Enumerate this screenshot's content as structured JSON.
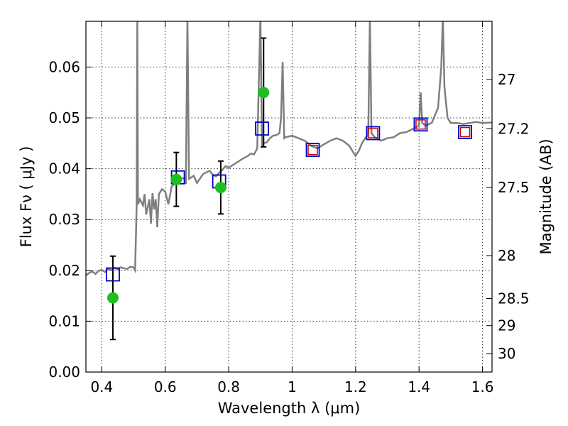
{
  "chart_data": {
    "type": "scatter",
    "title": "",
    "xlabel": "Wavelength  λ (μm)",
    "ylabel": "Flux  Fν  ( μJy )",
    "y2label": "Magnitude (AB)",
    "xlim": [
      0.35,
      1.63
    ],
    "ylim": [
      0.0,
      0.069
    ],
    "grid": true,
    "legend": "none",
    "x_ticks": [
      {
        "value": 0.4,
        "label": "0.4"
      },
      {
        "value": 0.6,
        "label": "0.6"
      },
      {
        "value": 0.8,
        "label": "0.8"
      },
      {
        "value": 1.0,
        "label": "1"
      },
      {
        "value": 1.2,
        "label": "1.2"
      },
      {
        "value": 1.4,
        "label": "1.4"
      },
      {
        "value": 1.6,
        "label": "1.6"
      }
    ],
    "y_ticks": [
      {
        "value": 0.0,
        "label": "0.00"
      },
      {
        "value": 0.01,
        "label": "0.01"
      },
      {
        "value": 0.02,
        "label": "0.02"
      },
      {
        "value": 0.03,
        "label": "0.03"
      },
      {
        "value": 0.04,
        "label": "0.04"
      },
      {
        "value": 0.05,
        "label": "0.05"
      },
      {
        "value": 0.06,
        "label": "0.06"
      }
    ],
    "y2_ticks": [
      {
        "mag": 27.0,
        "label": "27"
      },
      {
        "mag": 27.2,
        "label": "27.2"
      },
      {
        "mag": 27.5,
        "label": "27.5"
      },
      {
        "mag": 28.0,
        "label": "28"
      },
      {
        "mag": 28.5,
        "label": "28.5"
      },
      {
        "mag": 29.0,
        "label": "29"
      },
      {
        "mag": 30.0,
        "label": "30"
      }
    ],
    "colors": {
      "model": "#7f7f7f",
      "observed": "#1fbf1f",
      "errorbar": "#000000",
      "model_band_blue": "#0000cc",
      "model_band_red": "#cc0000"
    },
    "series": [
      {
        "kind": "line",
        "points": [
          [
            0.35,
            0.019
          ],
          [
            0.36,
            0.0195
          ],
          [
            0.37,
            0.0198
          ],
          [
            0.38,
            0.0193
          ],
          [
            0.39,
            0.0199
          ],
          [
            0.4,
            0.0201
          ],
          [
            0.41,
            0.0197
          ],
          [
            0.42,
            0.0203
          ],
          [
            0.43,
            0.02
          ],
          [
            0.44,
            0.0205
          ],
          [
            0.45,
            0.0202
          ],
          [
            0.46,
            0.0206
          ],
          [
            0.47,
            0.0204
          ],
          [
            0.48,
            0.0203
          ],
          [
            0.49,
            0.0207
          ],
          [
            0.5,
            0.0206
          ],
          [
            0.505,
            0.02
          ],
          [
            0.51,
            0.033
          ],
          [
            0.512,
            0.07
          ],
          [
            0.514,
            0.033
          ],
          [
            0.52,
            0.034
          ],
          [
            0.53,
            0.0328
          ],
          [
            0.535,
            0.035
          ],
          [
            0.54,
            0.031
          ],
          [
            0.55,
            0.034
          ],
          [
            0.555,
            0.0292
          ],
          [
            0.56,
            0.0352
          ],
          [
            0.565,
            0.032
          ],
          [
            0.57,
            0.034
          ],
          [
            0.575,
            0.0285
          ],
          [
            0.58,
            0.035
          ],
          [
            0.59,
            0.036
          ],
          [
            0.6,
            0.0355
          ],
          [
            0.61,
            0.033
          ],
          [
            0.62,
            0.0365
          ],
          [
            0.63,
            0.037
          ],
          [
            0.64,
            0.0375
          ],
          [
            0.65,
            0.038
          ],
          [
            0.66,
            0.0382
          ],
          [
            0.665,
            0.037
          ],
          [
            0.67,
            0.07
          ],
          [
            0.675,
            0.038
          ],
          [
            0.69,
            0.0386
          ],
          [
            0.7,
            0.0372
          ],
          [
            0.72,
            0.039
          ],
          [
            0.74,
            0.0396
          ],
          [
            0.75,
            0.0388
          ],
          [
            0.76,
            0.0385
          ],
          [
            0.77,
            0.0392
          ],
          [
            0.78,
            0.0398
          ],
          [
            0.79,
            0.0405
          ],
          [
            0.8,
            0.0402
          ],
          [
            0.82,
            0.041
          ],
          [
            0.84,
            0.0418
          ],
          [
            0.86,
            0.0425
          ],
          [
            0.87,
            0.043
          ],
          [
            0.88,
            0.0428
          ],
          [
            0.89,
            0.044
          ],
          [
            0.9,
            0.07
          ],
          [
            0.905,
            0.0445
          ],
          [
            0.91,
            0.045
          ],
          [
            0.92,
            0.0452
          ],
          [
            0.93,
            0.046
          ],
          [
            0.94,
            0.0465
          ],
          [
            0.95,
            0.0466
          ],
          [
            0.96,
            0.047
          ],
          [
            0.965,
            0.05
          ],
          [
            0.97,
            0.061
          ],
          [
            0.975,
            0.046
          ],
          [
            0.98,
            0.0462
          ],
          [
            1.0,
            0.0465
          ],
          [
            1.02,
            0.046
          ],
          [
            1.04,
            0.0455
          ],
          [
            1.06,
            0.0445
          ],
          [
            1.08,
            0.044
          ],
          [
            1.1,
            0.0448
          ],
          [
            1.12,
            0.0455
          ],
          [
            1.14,
            0.046
          ],
          [
            1.16,
            0.0455
          ],
          [
            1.18,
            0.0445
          ],
          [
            1.2,
            0.0425
          ],
          [
            1.21,
            0.0435
          ],
          [
            1.22,
            0.045
          ],
          [
            1.23,
            0.046
          ],
          [
            1.24,
            0.0468
          ],
          [
            1.245,
            0.07
          ],
          [
            1.25,
            0.047
          ],
          [
            1.26,
            0.0462
          ],
          [
            1.28,
            0.0455
          ],
          [
            1.3,
            0.046
          ],
          [
            1.32,
            0.0462
          ],
          [
            1.34,
            0.047
          ],
          [
            1.36,
            0.0472
          ],
          [
            1.38,
            0.0478
          ],
          [
            1.4,
            0.0485
          ],
          [
            1.405,
            0.055
          ],
          [
            1.41,
            0.049
          ],
          [
            1.42,
            0.0485
          ],
          [
            1.44,
            0.049
          ],
          [
            1.46,
            0.052
          ],
          [
            1.47,
            0.06
          ],
          [
            1.475,
            0.07
          ],
          [
            1.48,
            0.056
          ],
          [
            1.49,
            0.05
          ],
          [
            1.5,
            0.049
          ],
          [
            1.52,
            0.049
          ],
          [
            1.54,
            0.0488
          ],
          [
            1.56,
            0.049
          ],
          [
            1.58,
            0.0492
          ],
          [
            1.6,
            0.049
          ],
          [
            1.63,
            0.0491
          ]
        ]
      },
      {
        "kind": "points-with-errors",
        "points": [
          {
            "x": 0.435,
            "y": 0.0146,
            "err": 0.0082
          },
          {
            "x": 0.635,
            "y": 0.0379,
            "err": 0.0053
          },
          {
            "x": 0.775,
            "y": 0.0363,
            "err": 0.0052
          },
          {
            "x": 0.91,
            "y": 0.055,
            "err": 0.0107
          }
        ]
      },
      {
        "kind": "open-squares",
        "points": [
          {
            "x": 0.435,
            "y": 0.0192,
            "edge": "blue"
          },
          {
            "x": 0.64,
            "y": 0.0383,
            "edge": "blue"
          },
          {
            "x": 0.77,
            "y": 0.0375,
            "edge": "blue"
          },
          {
            "x": 0.905,
            "y": 0.0479,
            "edge": "blue"
          },
          {
            "x": 1.065,
            "y": 0.0437,
            "edge": "blue-red"
          },
          {
            "x": 1.255,
            "y": 0.047,
            "edge": "blue-red"
          },
          {
            "x": 1.405,
            "y": 0.0487,
            "edge": "blue-red"
          },
          {
            "x": 1.545,
            "y": 0.0472,
            "edge": "blue-red"
          }
        ]
      }
    ]
  }
}
